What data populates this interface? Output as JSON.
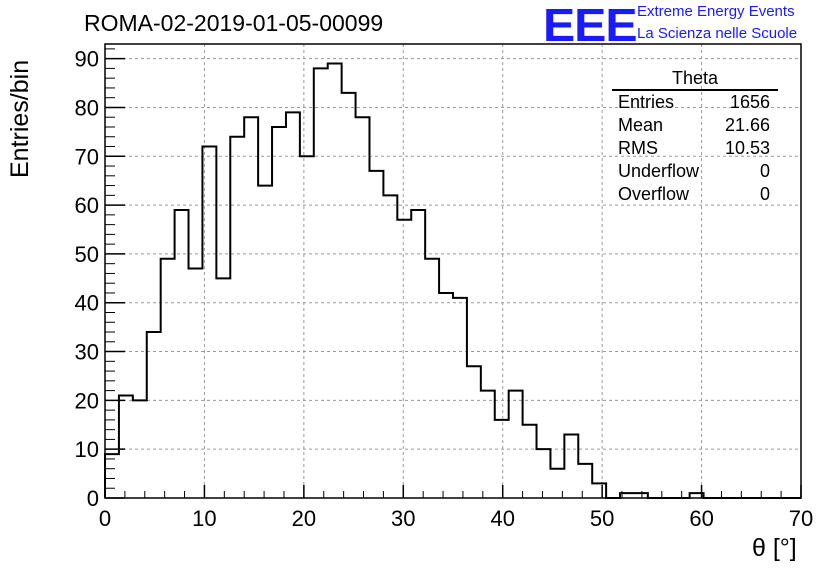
{
  "title": "ROMA-02-2019-01-05-00099",
  "logo": {
    "mark": "EEE",
    "line1": "Extreme Energy Events",
    "line2": "La Scienza nelle Scuole"
  },
  "stats": {
    "title": "Theta",
    "rows": [
      {
        "label": "Entries",
        "value": "1656"
      },
      {
        "label": "Mean",
        "value": "21.66"
      },
      {
        "label": "RMS",
        "value": "10.53"
      },
      {
        "label": "Underflow",
        "value": "0"
      },
      {
        "label": "Overflow",
        "value": "0"
      }
    ]
  },
  "chart_data": {
    "type": "histogram",
    "xlabel": "θ [°]",
    "ylabel": "Entries/bin",
    "xlim": [
      0,
      70
    ],
    "ylim": [
      0,
      93
    ],
    "bin_width": 1.4,
    "grid": true,
    "xticks": [
      0,
      10,
      20,
      30,
      40,
      50,
      60,
      70
    ],
    "yticks": [
      0,
      10,
      20,
      30,
      40,
      50,
      60,
      70,
      80,
      90
    ],
    "values": [
      9,
      21,
      20,
      34,
      49,
      59,
      47,
      72,
      45,
      74,
      78,
      64,
      76,
      79,
      70,
      88,
      89,
      83,
      78,
      67,
      62,
      57,
      59,
      49,
      42,
      41,
      27,
      22,
      16,
      22,
      15,
      10,
      6,
      13,
      7,
      3,
      0,
      1,
      1,
      0,
      0,
      0,
      1,
      0,
      0,
      0,
      0,
      0,
      0,
      0
    ]
  }
}
